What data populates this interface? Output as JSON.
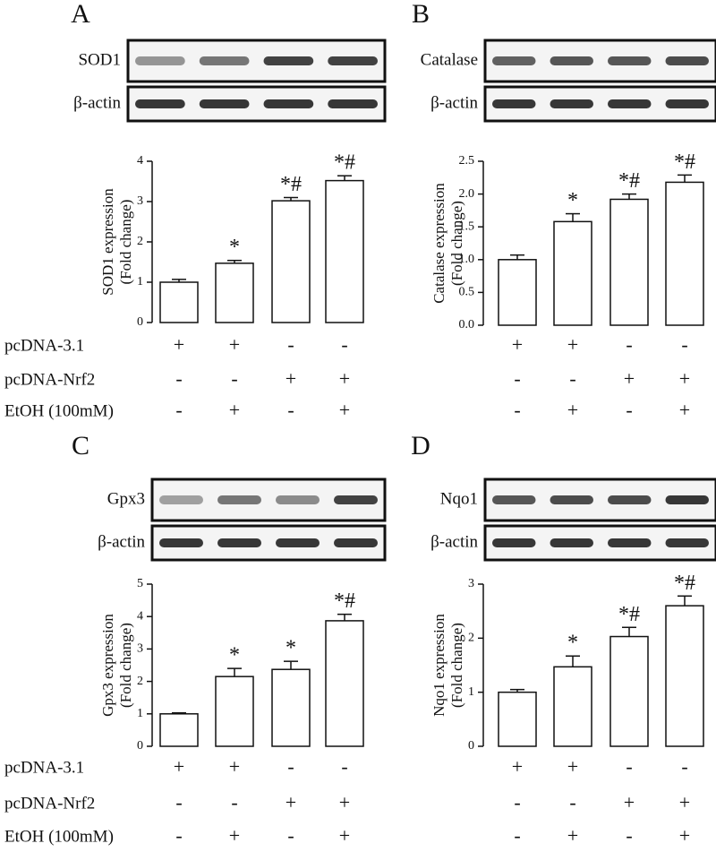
{
  "chart_data": [
    {
      "type": "bar",
      "panel": "A",
      "blots": [
        "SOD1",
        "β-actin"
      ],
      "ylabel": [
        "SOD1 expression",
        "(Fold change)"
      ],
      "categories": [
        null,
        null,
        null,
        null
      ],
      "values": [
        1.0,
        1.47,
        3.02,
        3.52
      ],
      "errors": [
        0.07,
        0.07,
        0.08,
        0.12
      ],
      "significance": [
        null,
        "*",
        "*#",
        "*#"
      ],
      "ylim": [
        0,
        4
      ],
      "yticks": [
        0,
        1,
        2,
        3,
        4
      ],
      "treatment_signs": [
        [
          "+",
          "+",
          "-",
          "-"
        ],
        [
          "-",
          "-",
          "+",
          "+"
        ],
        [
          "-",
          "+",
          "-",
          "+"
        ]
      ]
    },
    {
      "type": "bar",
      "panel": "B",
      "blots": [
        "Catalase",
        "β-actin"
      ],
      "ylabel": [
        "Catalase expression",
        "(Fold change)"
      ],
      "categories": [
        null,
        null,
        null,
        null
      ],
      "values": [
        1.0,
        1.58,
        1.92,
        2.18
      ],
      "errors": [
        0.07,
        0.12,
        0.08,
        0.11
      ],
      "significance": [
        null,
        "*",
        "*#",
        "*#"
      ],
      "ylim": [
        0,
        2.5
      ],
      "yticks": [
        {
          "value": 0,
          "label": "0.0"
        },
        0.5,
        {
          "value": 1,
          "label": "1.0"
        },
        1.5,
        {
          "value": 2,
          "label": "2.0"
        },
        2.5
      ],
      "treatment_signs": [
        [
          "+",
          "+",
          "-",
          "-"
        ],
        [
          "-",
          "-",
          "+",
          "+"
        ],
        [
          "-",
          "+",
          "-",
          "+"
        ]
      ]
    },
    {
      "type": "bar",
      "panel": "C",
      "blots": [
        "Gpx3",
        "β-actin"
      ],
      "ylabel": [
        "Gpx3 expression",
        "(Fold change)"
      ],
      "categories": [
        null,
        null,
        null,
        null
      ],
      "values": [
        1.0,
        2.15,
        2.37,
        3.87
      ],
      "errors": [
        0.03,
        0.25,
        0.25,
        0.2
      ],
      "significance": [
        null,
        "*",
        "*",
        "*#"
      ],
      "ylim": [
        0,
        5
      ],
      "yticks": [
        0,
        1,
        2,
        3,
        4,
        5
      ],
      "treatment_signs": [
        [
          "+",
          "+",
          "-",
          "-"
        ],
        [
          "-",
          "-",
          "+",
          "+"
        ],
        [
          "-",
          "+",
          "-",
          "+"
        ]
      ]
    },
    {
      "type": "bar",
      "panel": "D",
      "blots": [
        "Nqo1",
        "β-actin"
      ],
      "ylabel": [
        "Nqo1 expression",
        "(Fold change)"
      ],
      "categories": [
        null,
        null,
        null,
        null
      ],
      "values": [
        1.0,
        1.47,
        2.03,
        2.6
      ],
      "errors": [
        0.05,
        0.2,
        0.17,
        0.18
      ],
      "significance": [
        null,
        "*",
        "*#",
        "*#"
      ],
      "ylim": [
        0,
        3
      ],
      "yticks": [
        0,
        1,
        2,
        3
      ],
      "treatment_signs": [
        [
          "+",
          "+",
          "-",
          "-"
        ],
        [
          "-",
          "-",
          "+",
          "+"
        ],
        [
          "-",
          "+",
          "-",
          "+"
        ]
      ]
    }
  ],
  "treatment_labels": {
    "top": [
      "pcDNA-3.1",
      "pcDNA-Nrf2",
      "EtOH (100mM)"
    ],
    "bottom": [
      "pcDNA-3.1",
      "pcDNA-Nrf2",
      "EtOH (100mM)"
    ]
  }
}
